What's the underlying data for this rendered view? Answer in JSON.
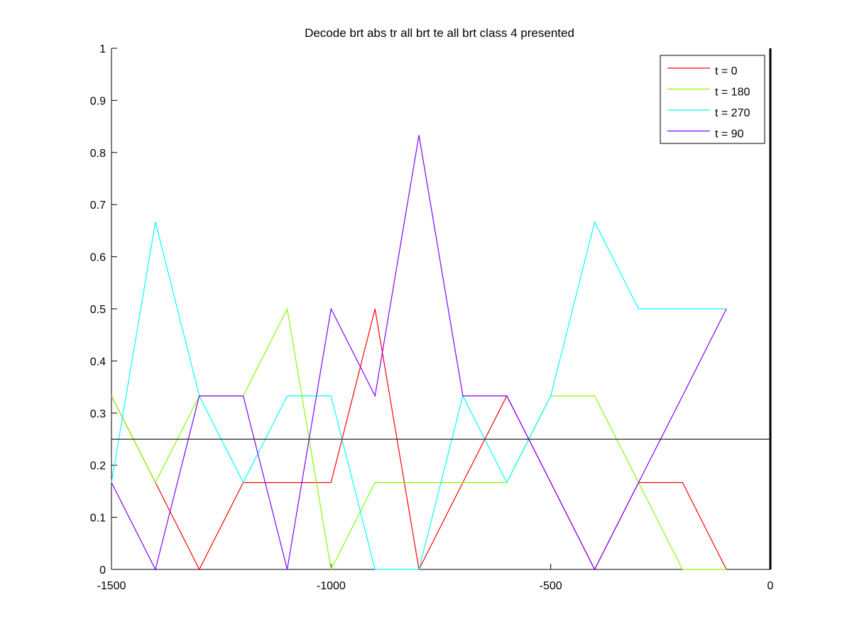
{
  "chart_data": {
    "type": "line",
    "title": "Decode brt abs tr all brt te all brt class 4 presented",
    "xlabel": "",
    "ylabel": "",
    "xlim": [
      -1500,
      0
    ],
    "ylim": [
      0,
      1
    ],
    "x_ticks": [
      -1500,
      -1000,
      -500,
      0
    ],
    "x_tick_labels": [
      "-1500",
      "-1000",
      "-500",
      "0"
    ],
    "y_ticks": [
      0,
      0.1,
      0.2,
      0.3,
      0.4,
      0.5,
      0.6,
      0.7,
      0.8,
      0.9,
      1
    ],
    "y_tick_labels": [
      "0",
      "0.1",
      "0.2",
      "0.3",
      "0.4",
      "0.5",
      "0.6",
      "0.7",
      "0.8",
      "0.9",
      "1"
    ],
    "x": [
      -1500,
      -1400,
      -1300,
      -1200,
      -1100,
      -1000,
      -900,
      -800,
      -700,
      -600,
      -500,
      -400,
      -300,
      -200,
      -100
    ],
    "series": [
      {
        "name": "t = 0",
        "color": "#ff0000",
        "values": [
          0.333,
          0.1667,
          0,
          0.1667,
          0.1667,
          0.1667,
          0.5,
          0,
          0.1667,
          0.333,
          0.1667,
          0,
          0.1667,
          0.1667,
          0
        ]
      },
      {
        "name": "t = 180",
        "color": "#80ff00",
        "values": [
          0.333,
          0.1667,
          0.333,
          0.333,
          0.5,
          0,
          0.1667,
          0.1667,
          0.1667,
          0.1667,
          0.333,
          0.333,
          0.1667,
          0,
          0
        ]
      },
      {
        "name": "t = 270",
        "color": "#00ffff",
        "values": [
          0.1667,
          0.6667,
          0.333,
          0.1667,
          0.333,
          0.333,
          0,
          0,
          0.333,
          0.1667,
          0.333,
          0.6667,
          0.5,
          0.5,
          0.5
        ]
      },
      {
        "name": "t = 90",
        "color": "#8000ff",
        "values": [
          0.1667,
          0,
          0.333,
          0.333,
          0,
          0.5,
          0.333,
          0.8333,
          0.333,
          0.333,
          0.1667,
          0,
          0.1667,
          0.333,
          0.5
        ]
      }
    ],
    "reference_line": {
      "y": 0.25,
      "color": "#000000"
    },
    "vertical_marker": {
      "x": 0,
      "color": "#000000"
    },
    "legend_position": "top-right",
    "grid": false
  }
}
